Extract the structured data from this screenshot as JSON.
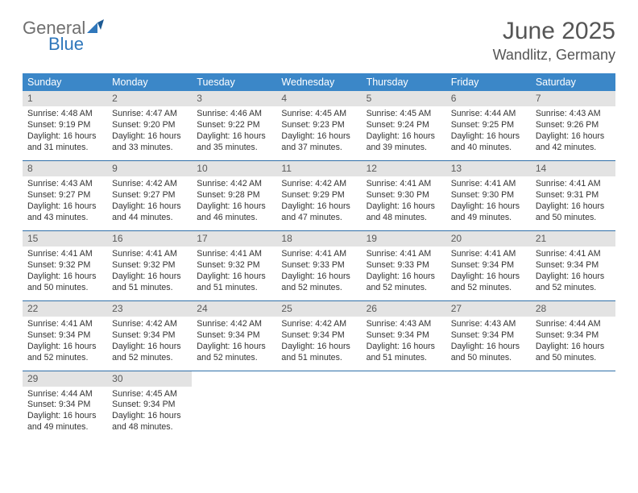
{
  "logo": {
    "part1": "General",
    "part2": "Blue"
  },
  "title": "June 2025",
  "location": "Wandlitz, Germany",
  "colors": {
    "header_bg": "#3b87c8",
    "header_text": "#ffffff",
    "daynum_bg": "#e3e3e3",
    "daynum_text": "#5a5a5a",
    "row_border": "#2f6fa8",
    "body_text": "#333333",
    "title_text": "#555555",
    "logo_gray": "#6f6f6f",
    "logo_blue": "#2f77bb"
  },
  "weekdays": [
    "Sunday",
    "Monday",
    "Tuesday",
    "Wednesday",
    "Thursday",
    "Friday",
    "Saturday"
  ],
  "weeks": [
    [
      {
        "n": "1",
        "sr": "Sunrise: 4:48 AM",
        "ss": "Sunset: 9:19 PM",
        "d1": "Daylight: 16 hours",
        "d2": "and 31 minutes."
      },
      {
        "n": "2",
        "sr": "Sunrise: 4:47 AM",
        "ss": "Sunset: 9:20 PM",
        "d1": "Daylight: 16 hours",
        "d2": "and 33 minutes."
      },
      {
        "n": "3",
        "sr": "Sunrise: 4:46 AM",
        "ss": "Sunset: 9:22 PM",
        "d1": "Daylight: 16 hours",
        "d2": "and 35 minutes."
      },
      {
        "n": "4",
        "sr": "Sunrise: 4:45 AM",
        "ss": "Sunset: 9:23 PM",
        "d1": "Daylight: 16 hours",
        "d2": "and 37 minutes."
      },
      {
        "n": "5",
        "sr": "Sunrise: 4:45 AM",
        "ss": "Sunset: 9:24 PM",
        "d1": "Daylight: 16 hours",
        "d2": "and 39 minutes."
      },
      {
        "n": "6",
        "sr": "Sunrise: 4:44 AM",
        "ss": "Sunset: 9:25 PM",
        "d1": "Daylight: 16 hours",
        "d2": "and 40 minutes."
      },
      {
        "n": "7",
        "sr": "Sunrise: 4:43 AM",
        "ss": "Sunset: 9:26 PM",
        "d1": "Daylight: 16 hours",
        "d2": "and 42 minutes."
      }
    ],
    [
      {
        "n": "8",
        "sr": "Sunrise: 4:43 AM",
        "ss": "Sunset: 9:27 PM",
        "d1": "Daylight: 16 hours",
        "d2": "and 43 minutes."
      },
      {
        "n": "9",
        "sr": "Sunrise: 4:42 AM",
        "ss": "Sunset: 9:27 PM",
        "d1": "Daylight: 16 hours",
        "d2": "and 44 minutes."
      },
      {
        "n": "10",
        "sr": "Sunrise: 4:42 AM",
        "ss": "Sunset: 9:28 PM",
        "d1": "Daylight: 16 hours",
        "d2": "and 46 minutes."
      },
      {
        "n": "11",
        "sr": "Sunrise: 4:42 AM",
        "ss": "Sunset: 9:29 PM",
        "d1": "Daylight: 16 hours",
        "d2": "and 47 minutes."
      },
      {
        "n": "12",
        "sr": "Sunrise: 4:41 AM",
        "ss": "Sunset: 9:30 PM",
        "d1": "Daylight: 16 hours",
        "d2": "and 48 minutes."
      },
      {
        "n": "13",
        "sr": "Sunrise: 4:41 AM",
        "ss": "Sunset: 9:30 PM",
        "d1": "Daylight: 16 hours",
        "d2": "and 49 minutes."
      },
      {
        "n": "14",
        "sr": "Sunrise: 4:41 AM",
        "ss": "Sunset: 9:31 PM",
        "d1": "Daylight: 16 hours",
        "d2": "and 50 minutes."
      }
    ],
    [
      {
        "n": "15",
        "sr": "Sunrise: 4:41 AM",
        "ss": "Sunset: 9:32 PM",
        "d1": "Daylight: 16 hours",
        "d2": "and 50 minutes."
      },
      {
        "n": "16",
        "sr": "Sunrise: 4:41 AM",
        "ss": "Sunset: 9:32 PM",
        "d1": "Daylight: 16 hours",
        "d2": "and 51 minutes."
      },
      {
        "n": "17",
        "sr": "Sunrise: 4:41 AM",
        "ss": "Sunset: 9:32 PM",
        "d1": "Daylight: 16 hours",
        "d2": "and 51 minutes."
      },
      {
        "n": "18",
        "sr": "Sunrise: 4:41 AM",
        "ss": "Sunset: 9:33 PM",
        "d1": "Daylight: 16 hours",
        "d2": "and 52 minutes."
      },
      {
        "n": "19",
        "sr": "Sunrise: 4:41 AM",
        "ss": "Sunset: 9:33 PM",
        "d1": "Daylight: 16 hours",
        "d2": "and 52 minutes."
      },
      {
        "n": "20",
        "sr": "Sunrise: 4:41 AM",
        "ss": "Sunset: 9:34 PM",
        "d1": "Daylight: 16 hours",
        "d2": "and 52 minutes."
      },
      {
        "n": "21",
        "sr": "Sunrise: 4:41 AM",
        "ss": "Sunset: 9:34 PM",
        "d1": "Daylight: 16 hours",
        "d2": "and 52 minutes."
      }
    ],
    [
      {
        "n": "22",
        "sr": "Sunrise: 4:41 AM",
        "ss": "Sunset: 9:34 PM",
        "d1": "Daylight: 16 hours",
        "d2": "and 52 minutes."
      },
      {
        "n": "23",
        "sr": "Sunrise: 4:42 AM",
        "ss": "Sunset: 9:34 PM",
        "d1": "Daylight: 16 hours",
        "d2": "and 52 minutes."
      },
      {
        "n": "24",
        "sr": "Sunrise: 4:42 AM",
        "ss": "Sunset: 9:34 PM",
        "d1": "Daylight: 16 hours",
        "d2": "and 52 minutes."
      },
      {
        "n": "25",
        "sr": "Sunrise: 4:42 AM",
        "ss": "Sunset: 9:34 PM",
        "d1": "Daylight: 16 hours",
        "d2": "and 51 minutes."
      },
      {
        "n": "26",
        "sr": "Sunrise: 4:43 AM",
        "ss": "Sunset: 9:34 PM",
        "d1": "Daylight: 16 hours",
        "d2": "and 51 minutes."
      },
      {
        "n": "27",
        "sr": "Sunrise: 4:43 AM",
        "ss": "Sunset: 9:34 PM",
        "d1": "Daylight: 16 hours",
        "d2": "and 50 minutes."
      },
      {
        "n": "28",
        "sr": "Sunrise: 4:44 AM",
        "ss": "Sunset: 9:34 PM",
        "d1": "Daylight: 16 hours",
        "d2": "and 50 minutes."
      }
    ],
    [
      {
        "n": "29",
        "sr": "Sunrise: 4:44 AM",
        "ss": "Sunset: 9:34 PM",
        "d1": "Daylight: 16 hours",
        "d2": "and 49 minutes."
      },
      {
        "n": "30",
        "sr": "Sunrise: 4:45 AM",
        "ss": "Sunset: 9:34 PM",
        "d1": "Daylight: 16 hours",
        "d2": "and 48 minutes."
      },
      {
        "empty": true
      },
      {
        "empty": true
      },
      {
        "empty": true
      },
      {
        "empty": true
      },
      {
        "empty": true
      }
    ]
  ]
}
